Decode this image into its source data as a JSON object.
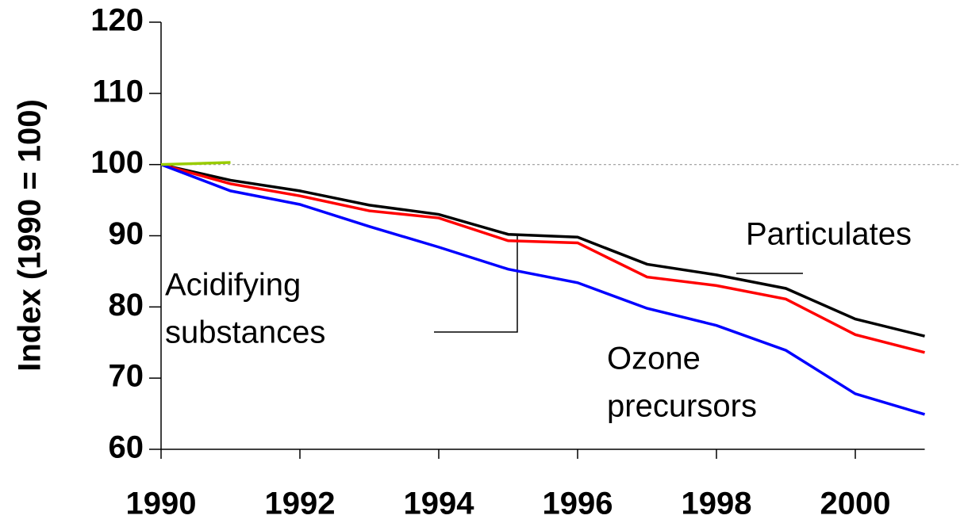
{
  "chart_data": {
    "type": "line",
    "ylabel": "Index (1990 = 100)",
    "x": [
      1990,
      1991,
      1992,
      1993,
      1994,
      1995,
      1996,
      1997,
      1998,
      1999,
      2000,
      2001
    ],
    "series": [
      {
        "color": "#000000",
        "values": [
          100,
          97.8,
          96.3,
          94.3,
          93,
          90.2,
          89.8,
          86,
          84.5,
          82.6,
          78.3,
          75.9
        ]
      },
      {
        "color": "#ff0000",
        "values": [
          100,
          97.3,
          95.6,
          93.5,
          92.5,
          89.3,
          89,
          84.2,
          83,
          81.1,
          76.1,
          73.6
        ]
      },
      {
        "color": "#0000ff",
        "values": [
          100,
          96.3,
          94.4,
          91.3,
          88.4,
          85.3,
          83.4,
          79.8,
          77.4,
          73.9,
          67.8,
          64.9
        ]
      },
      {
        "color": "#99cc00",
        "values": [
          100,
          100.3,
          null,
          null,
          null,
          null,
          null,
          null,
          null,
          null,
          null,
          null
        ]
      }
    ],
    "xlim": [
      1990,
      2001
    ],
    "xticks": [
      1990,
      1992,
      1994,
      1996,
      1998,
      2000
    ],
    "ylim": [
      60,
      120
    ],
    "yticks": [
      60,
      70,
      80,
      90,
      100,
      110,
      120
    ],
    "reference_line": 100,
    "annotations": [
      "Particulates",
      "Acidifying",
      "substances",
      "Ozone",
      "precursors"
    ]
  }
}
